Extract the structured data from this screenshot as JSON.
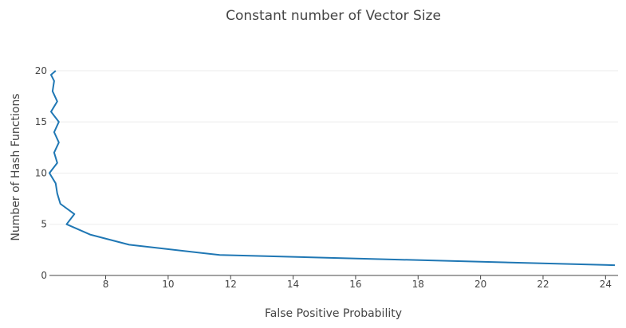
{
  "chart_data": {
    "type": "line",
    "title": "Constant number of Vector Size",
    "xlabel": "False Positive Probability",
    "ylabel": "Number of Hash Functions",
    "xlim": [
      6.2,
      24.4
    ],
    "ylim": [
      0,
      20.3
    ],
    "x_ticks": [
      8,
      10,
      12,
      14,
      16,
      18,
      20,
      22,
      24
    ],
    "y_ticks": [
      0,
      5,
      10,
      15,
      20
    ],
    "grid": true,
    "legend": "none",
    "line_color": "#1f77b4",
    "series": [
      {
        "x": [
          24.3,
          11.65,
          8.75,
          7.5,
          6.75,
          7.0,
          6.55,
          6.45,
          6.4,
          6.2,
          6.45,
          6.35,
          6.5,
          6.35,
          6.5,
          6.25,
          6.45,
          6.3,
          6.35,
          6.25,
          6.4
        ],
        "y": [
          1,
          2,
          3,
          4,
          5,
          6,
          7,
          8,
          9,
          10,
          11,
          12,
          13,
          14,
          15,
          16,
          17,
          18,
          19,
          19.6,
          20
        ]
      }
    ]
  }
}
